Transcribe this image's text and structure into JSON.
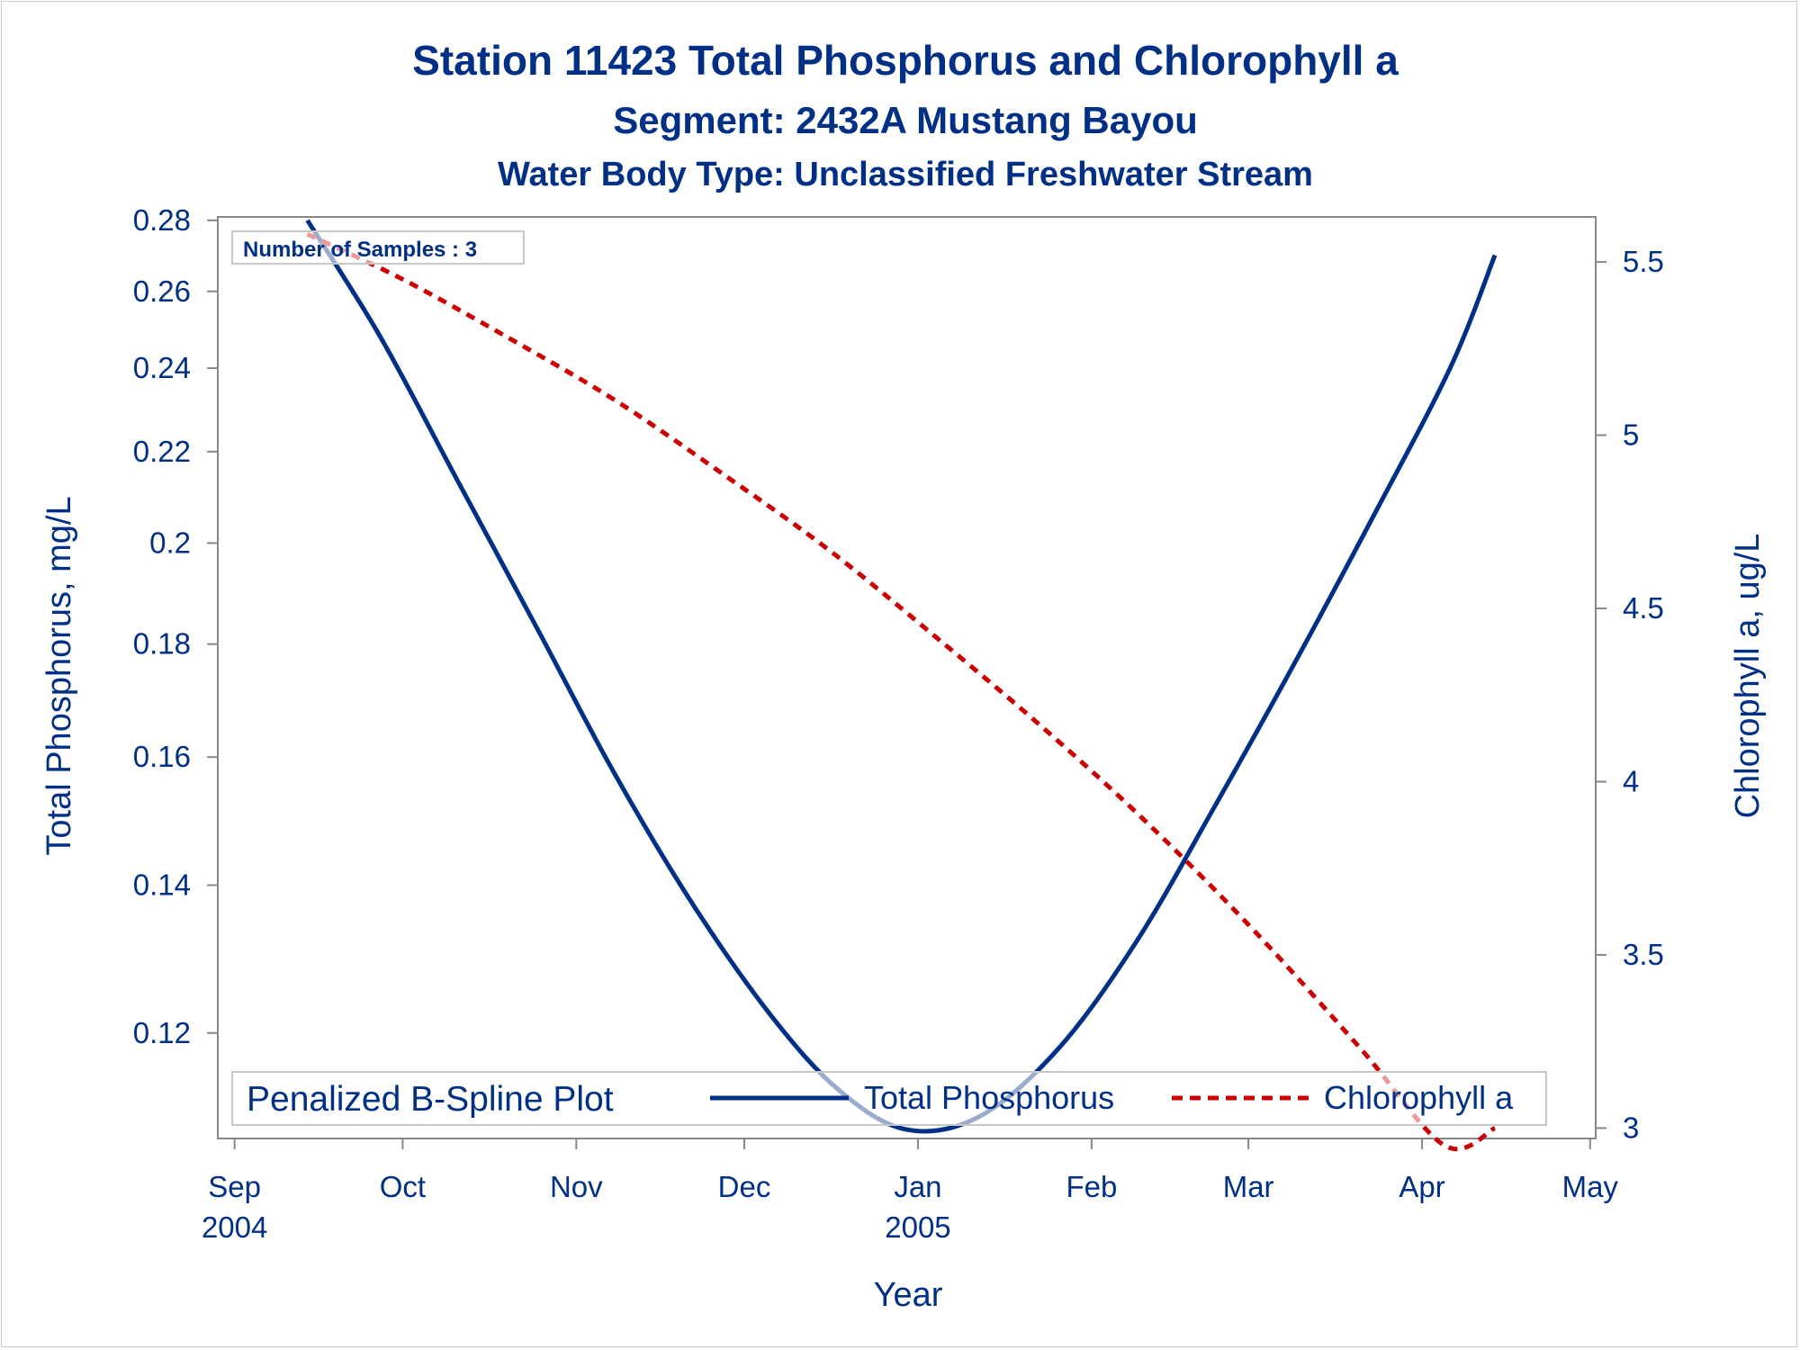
{
  "chart_data": {
    "type": "line",
    "title": "Station 11423  Total Phosphorus and Chlorophyll a",
    "subtitle": "Segment: 2432A  Mustang Bayou",
    "subtitle2": "Water Body Type: Unclassified Freshwater Stream",
    "xlabel": "Year",
    "ylabel_left": "Total Phosphorus, mg/L",
    "ylabel_right": "Chlorophyll a, ug/L",
    "annotation": "Number of Samples : 3",
    "x_ticks": [
      {
        "date": "2004-09-01",
        "label": "Sep",
        "label2": "2004"
      },
      {
        "date": "2004-10-01",
        "label": "Oct",
        "label2": ""
      },
      {
        "date": "2004-11-01",
        "label": "Nov",
        "label2": ""
      },
      {
        "date": "2004-12-01",
        "label": "Dec",
        "label2": ""
      },
      {
        "date": "2005-01-01",
        "label": "Jan",
        "label2": "2005"
      },
      {
        "date": "2005-02-01",
        "label": "Feb",
        "label2": ""
      },
      {
        "date": "2005-03-01",
        "label": "Mar",
        "label2": ""
      },
      {
        "date": "2005-04-01",
        "label": "Apr",
        "label2": ""
      },
      {
        "date": "2005-05-01",
        "label": "May",
        "label2": ""
      }
    ],
    "xlim": [
      "2004-08-29",
      "2005-05-02"
    ],
    "y_left": {
      "scale": "log",
      "ylim": [
        0.1075,
        0.281
      ],
      "ticks": [
        {
          "value": 0.28,
          "label": "0.28"
        },
        {
          "value": 0.26,
          "label": "0.26"
        },
        {
          "value": 0.24,
          "label": "0.24"
        },
        {
          "value": 0.22,
          "label": "0.22"
        },
        {
          "value": 0.2,
          "label": "0.2"
        },
        {
          "value": 0.18,
          "label": "0.18"
        },
        {
          "value": 0.16,
          "label": "0.16"
        },
        {
          "value": 0.14,
          "label": "0.14"
        },
        {
          "value": 0.12,
          "label": "0.12"
        }
      ]
    },
    "y_right": {
      "scale": "linear",
      "ylim": [
        2.97,
        5.63
      ],
      "ticks": [
        {
          "value": 5.5,
          "label": "5.5"
        },
        {
          "value": 5,
          "label": "5"
        },
        {
          "value": 4.5,
          "label": "4.5"
        },
        {
          "value": 4,
          "label": "4"
        },
        {
          "value": 3.5,
          "label": "3.5"
        },
        {
          "value": 3,
          "label": "3"
        }
      ]
    },
    "legend": {
      "title": "Penalized B-Spline Plot",
      "placement": "bottom-inside"
    },
    "series": [
      {
        "name": "Total Phosphorus",
        "axis": "left",
        "color": "#002f86",
        "style": "solid",
        "points": [
          [
            "2004-09-14",
            0.28
          ],
          [
            "2004-09-27",
            0.248
          ],
          [
            "2004-10-11",
            0.213
          ],
          [
            "2004-10-25",
            0.183
          ],
          [
            "2004-11-08",
            0.157
          ],
          [
            "2004-11-22",
            0.137
          ],
          [
            "2004-12-06",
            0.122
          ],
          [
            "2004-12-18",
            0.113
          ],
          [
            "2004-12-30",
            0.1085
          ],
          [
            "2005-01-12",
            0.11
          ],
          [
            "2005-01-26",
            0.118
          ],
          [
            "2005-02-09",
            0.132
          ],
          [
            "2005-02-23",
            0.152
          ],
          [
            "2005-03-09",
            0.176
          ],
          [
            "2005-03-23",
            0.205
          ],
          [
            "2005-04-06",
            0.24
          ],
          [
            "2005-04-14",
            0.27
          ]
        ]
      },
      {
        "name": "Chlorophyll a",
        "axis": "right",
        "color": "#cc0000",
        "style": "dashed",
        "points": [
          [
            "2004-09-14",
            5.58
          ],
          [
            "2004-10-01",
            5.45
          ],
          [
            "2004-10-20",
            5.28
          ],
          [
            "2004-11-08",
            5.1
          ],
          [
            "2004-11-27",
            4.89
          ],
          [
            "2004-12-16",
            4.67
          ],
          [
            "2005-01-04",
            4.42
          ],
          [
            "2005-01-23",
            4.16
          ],
          [
            "2005-02-11",
            3.88
          ],
          [
            "2005-03-02",
            3.57
          ],
          [
            "2005-03-21",
            3.23
          ],
          [
            "2005-04-05",
            2.95
          ],
          [
            "2005-04-14",
            3.0
          ]
        ]
      }
    ]
  }
}
